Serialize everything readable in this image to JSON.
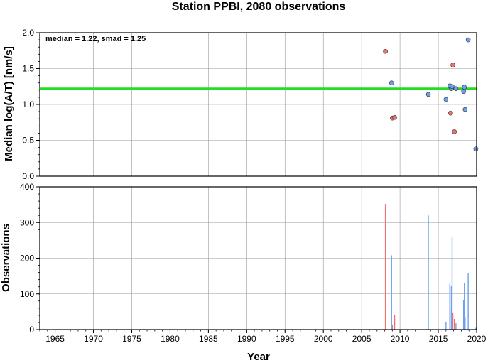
{
  "chart_data": [
    {
      "type": "scatter",
      "title": "Station PPBI, 2080 observations",
      "ylabel": "Median log(A/T) [nm/s]",
      "xlim": [
        1963,
        2020
      ],
      "ylim": [
        0.0,
        2.0
      ],
      "xticks": [
        "1965",
        "1970",
        "1975",
        "1980",
        "1985",
        "1990",
        "1995",
        "2000",
        "2005",
        "2010",
        "2015",
        "2020"
      ],
      "yticks": [
        "0.0",
        "0.5",
        "1.0",
        "1.5",
        "2.0"
      ],
      "grid": true,
      "annotation": "median = 1.22, smad = 1.25",
      "median_line": 1.22,
      "colors": {
        "red": "#f07070",
        "blue": "#6fa0f0",
        "median": "#22dd22"
      },
      "series": [
        {
          "color": "red",
          "points": [
            [
              2008.1,
              1.74
            ],
            [
              2009.0,
              0.81
            ],
            [
              2009.3,
              0.82
            ],
            [
              2016.6,
              0.88
            ],
            [
              2016.9,
              1.55
            ],
            [
              2017.1,
              0.62
            ]
          ]
        },
        {
          "color": "blue",
          "points": [
            [
              2008.9,
              1.3
            ],
            [
              2013.7,
              1.14
            ],
            [
              2016.0,
              1.07
            ],
            [
              2016.5,
              1.26
            ],
            [
              2016.7,
              1.22
            ],
            [
              2016.8,
              1.25
            ],
            [
              2017.3,
              1.22
            ],
            [
              2018.3,
              1.18
            ],
            [
              2018.4,
              1.24
            ],
            [
              2018.5,
              0.93
            ],
            [
              2018.9,
              1.9
            ],
            [
              2019.9,
              0.38
            ]
          ]
        }
      ]
    },
    {
      "type": "bar",
      "xlabel": "Year",
      "ylabel": "Observations",
      "xlim": [
        1963,
        2020
      ],
      "ylim": [
        0,
        400
      ],
      "xticks": [
        "1965",
        "1970",
        "1975",
        "1980",
        "1985",
        "1990",
        "1995",
        "2000",
        "2005",
        "2010",
        "2015",
        "2020"
      ],
      "yticks": [
        "0",
        "100",
        "200",
        "300",
        "400"
      ],
      "grid": true,
      "series": [
        {
          "color": "red",
          "bars": [
            [
              2008.1,
              352
            ],
            [
              2009.0,
              14
            ],
            [
              2009.3,
              42
            ],
            [
              2016.5,
              62
            ],
            [
              2016.7,
              55
            ],
            [
              2016.9,
              48
            ],
            [
              2017.1,
              30
            ]
          ]
        },
        {
          "color": "blue",
          "bars": [
            [
              2008.9,
              208
            ],
            [
              2013.7,
              320
            ],
            [
              2016.0,
              22
            ],
            [
              2016.5,
              128
            ],
            [
              2016.7,
              122
            ],
            [
              2016.8,
              258
            ],
            [
              2017.3,
              18
            ],
            [
              2018.3,
              82
            ],
            [
              2018.4,
              130
            ],
            [
              2018.5,
              35
            ],
            [
              2018.9,
              158
            ],
            [
              2019.9,
              5
            ]
          ]
        }
      ]
    }
  ]
}
